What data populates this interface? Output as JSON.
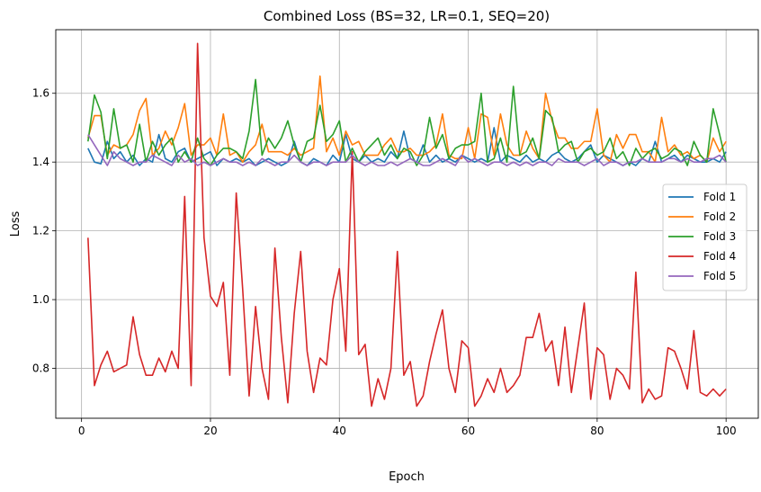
{
  "chart_data": {
    "type": "line",
    "title": "Combined Loss (BS=32, LR=0.1, SEQ=20)",
    "xlabel": "Epoch",
    "ylabel": "Loss",
    "xlim": [
      -4,
      105
    ],
    "ylim": [
      0.655,
      1.785
    ],
    "xticks": [
      0,
      20,
      40,
      60,
      80,
      100
    ],
    "yticks": [
      0.8,
      1.0,
      1.2,
      1.4,
      1.6
    ],
    "grid": true,
    "legend_position": "center-right",
    "x_start": 1,
    "x_end": 100,
    "series": [
      {
        "name": "Fold 1",
        "color": "#1f77b4",
        "values": [
          1.44,
          1.4,
          1.395,
          1.46,
          1.41,
          1.43,
          1.4,
          1.42,
          1.39,
          1.41,
          1.4,
          1.48,
          1.41,
          1.4,
          1.43,
          1.44,
          1.4,
          1.41,
          1.42,
          1.43,
          1.39,
          1.41,
          1.4,
          1.41,
          1.4,
          1.41,
          1.39,
          1.4,
          1.41,
          1.4,
          1.39,
          1.4,
          1.46,
          1.4,
          1.39,
          1.41,
          1.4,
          1.39,
          1.42,
          1.4,
          1.48,
          1.41,
          1.4,
          1.42,
          1.4,
          1.41,
          1.4,
          1.43,
          1.41,
          1.49,
          1.41,
          1.4,
          1.45,
          1.4,
          1.42,
          1.4,
          1.41,
          1.4,
          1.42,
          1.41,
          1.4,
          1.41,
          1.4,
          1.5,
          1.4,
          1.42,
          1.41,
          1.4,
          1.42,
          1.4,
          1.41,
          1.4,
          1.42,
          1.43,
          1.41,
          1.4,
          1.41,
          1.43,
          1.45,
          1.4,
          1.42,
          1.41,
          1.4,
          1.39,
          1.4,
          1.39,
          1.41,
          1.4,
          1.46,
          1.4,
          1.41,
          1.42,
          1.4,
          1.42,
          1.41,
          1.4,
          1.4,
          1.41,
          1.4,
          1.43
        ]
      },
      {
        "name": "Fold 2",
        "color": "#ff7f0e",
        "values": [
          1.47,
          1.535,
          1.535,
          1.42,
          1.45,
          1.44,
          1.45,
          1.48,
          1.55,
          1.585,
          1.42,
          1.44,
          1.49,
          1.45,
          1.5,
          1.57,
          1.42,
          1.45,
          1.45,
          1.47,
          1.42,
          1.54,
          1.42,
          1.43,
          1.4,
          1.43,
          1.45,
          1.51,
          1.43,
          1.43,
          1.43,
          1.42,
          1.44,
          1.42,
          1.43,
          1.44,
          1.65,
          1.43,
          1.47,
          1.42,
          1.49,
          1.45,
          1.46,
          1.42,
          1.42,
          1.42,
          1.45,
          1.47,
          1.43,
          1.43,
          1.44,
          1.42,
          1.42,
          1.43,
          1.45,
          1.54,
          1.42,
          1.41,
          1.41,
          1.5,
          1.41,
          1.54,
          1.53,
          1.42,
          1.54,
          1.45,
          1.42,
          1.42,
          1.49,
          1.44,
          1.41,
          1.6,
          1.52,
          1.47,
          1.47,
          1.44,
          1.44,
          1.46,
          1.46,
          1.555,
          1.42,
          1.4,
          1.48,
          1.44,
          1.48,
          1.48,
          1.43,
          1.43,
          1.4,
          1.53,
          1.43,
          1.45,
          1.42,
          1.43,
          1.41,
          1.42,
          1.4,
          1.47,
          1.43,
          1.46
        ]
      },
      {
        "name": "Fold 3",
        "color": "#2ca02c",
        "values": [
          1.46,
          1.595,
          1.545,
          1.41,
          1.555,
          1.44,
          1.45,
          1.4,
          1.51,
          1.4,
          1.46,
          1.42,
          1.45,
          1.47,
          1.4,
          1.43,
          1.4,
          1.47,
          1.41,
          1.39,
          1.42,
          1.44,
          1.44,
          1.43,
          1.41,
          1.49,
          1.64,
          1.42,
          1.47,
          1.44,
          1.47,
          1.52,
          1.45,
          1.4,
          1.46,
          1.47,
          1.565,
          1.46,
          1.48,
          1.52,
          1.4,
          1.44,
          1.4,
          1.43,
          1.45,
          1.47,
          1.42,
          1.45,
          1.41,
          1.44,
          1.43,
          1.39,
          1.42,
          1.53,
          1.44,
          1.48,
          1.41,
          1.44,
          1.45,
          1.45,
          1.46,
          1.6,
          1.4,
          1.41,
          1.47,
          1.4,
          1.62,
          1.42,
          1.43,
          1.47,
          1.41,
          1.55,
          1.53,
          1.43,
          1.45,
          1.46,
          1.4,
          1.43,
          1.44,
          1.42,
          1.43,
          1.47,
          1.41,
          1.43,
          1.39,
          1.44,
          1.41,
          1.43,
          1.44,
          1.41,
          1.42,
          1.44,
          1.43,
          1.39,
          1.46,
          1.42,
          1.4,
          1.555,
          1.48,
          1.4
        ]
      },
      {
        "name": "Fold 4",
        "color": "#d62728",
        "values": [
          1.18,
          0.75,
          0.81,
          0.85,
          0.79,
          0.8,
          0.81,
          0.95,
          0.84,
          0.78,
          0.78,
          0.83,
          0.79,
          0.85,
          0.8,
          1.3,
          0.75,
          1.745,
          1.18,
          1.01,
          0.98,
          1.05,
          0.78,
          1.31,
          1.03,
          0.72,
          0.98,
          0.8,
          0.71,
          1.15,
          0.89,
          0.7,
          0.96,
          1.14,
          0.85,
          0.73,
          0.83,
          0.81,
          1.0,
          1.09,
          0.85,
          1.43,
          0.84,
          0.87,
          0.69,
          0.77,
          0.71,
          0.8,
          1.14,
          0.78,
          0.82,
          0.69,
          0.72,
          0.82,
          0.9,
          0.97,
          0.8,
          0.73,
          0.88,
          0.86,
          0.69,
          0.72,
          0.77,
          0.73,
          0.8,
          0.73,
          0.75,
          0.78,
          0.89,
          0.89,
          0.96,
          0.85,
          0.88,
          0.75,
          0.92,
          0.73,
          0.86,
          0.99,
          0.71,
          0.86,
          0.84,
          0.71,
          0.8,
          0.78,
          0.74,
          1.08,
          0.7,
          0.74,
          0.71,
          0.72,
          0.86,
          0.85,
          0.8,
          0.74,
          0.91,
          0.73,
          0.72,
          0.74,
          0.72,
          0.74
        ]
      },
      {
        "name": "Fold 5",
        "color": "#9467bd",
        "values": [
          1.48,
          1.45,
          1.42,
          1.39,
          1.43,
          1.41,
          1.4,
          1.39,
          1.4,
          1.4,
          1.42,
          1.41,
          1.4,
          1.39,
          1.42,
          1.4,
          1.41,
          1.39,
          1.4,
          1.39,
          1.4,
          1.41,
          1.4,
          1.4,
          1.39,
          1.4,
          1.39,
          1.41,
          1.4,
          1.39,
          1.4,
          1.4,
          1.42,
          1.4,
          1.39,
          1.4,
          1.4,
          1.39,
          1.4,
          1.4,
          1.4,
          1.42,
          1.4,
          1.39,
          1.4,
          1.39,
          1.39,
          1.4,
          1.39,
          1.4,
          1.41,
          1.4,
          1.39,
          1.39,
          1.4,
          1.41,
          1.4,
          1.39,
          1.42,
          1.4,
          1.41,
          1.4,
          1.39,
          1.4,
          1.4,
          1.39,
          1.4,
          1.39,
          1.4,
          1.39,
          1.4,
          1.4,
          1.39,
          1.41,
          1.4,
          1.4,
          1.4,
          1.39,
          1.4,
          1.41,
          1.39,
          1.4,
          1.4,
          1.39,
          1.4,
          1.4,
          1.41,
          1.4,
          1.4,
          1.4,
          1.41,
          1.41,
          1.4,
          1.41,
          1.4,
          1.4,
          1.41,
          1.41,
          1.42,
          1.4
        ]
      }
    ]
  }
}
